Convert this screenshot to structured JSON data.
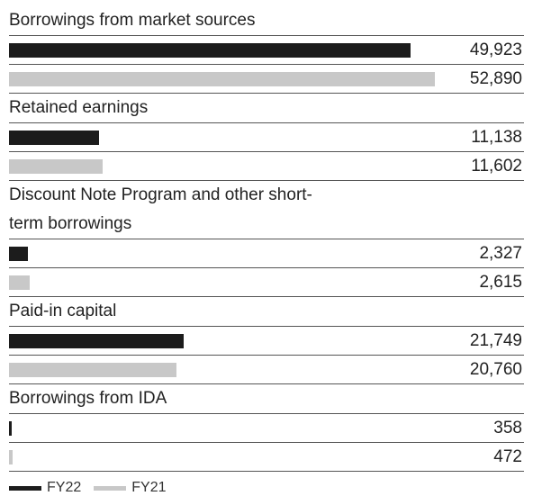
{
  "chart_data": {
    "type": "bar",
    "orientation": "horizontal",
    "categories": [
      "Borrowings from market sources",
      "Retained earnings",
      "Discount Note Program and other short-term borrowings",
      "Paid-in capital",
      "Borrowings from IDA"
    ],
    "series": [
      {
        "name": "FY22",
        "color": "#1c1c1c",
        "values": [
          49923,
          11138,
          2327,
          21749,
          358
        ],
        "value_labels": [
          "49,923",
          "11,138",
          "2,327",
          "21,749",
          "358"
        ]
      },
      {
        "name": "FY21",
        "color": "#c8c8c8",
        "values": [
          52890,
          11602,
          2615,
          20760,
          472
        ],
        "value_labels": [
          "52,890",
          "11,602",
          "2,615",
          "20,760",
          "472"
        ]
      }
    ],
    "xlim": [
      0,
      64000
    ]
  }
}
